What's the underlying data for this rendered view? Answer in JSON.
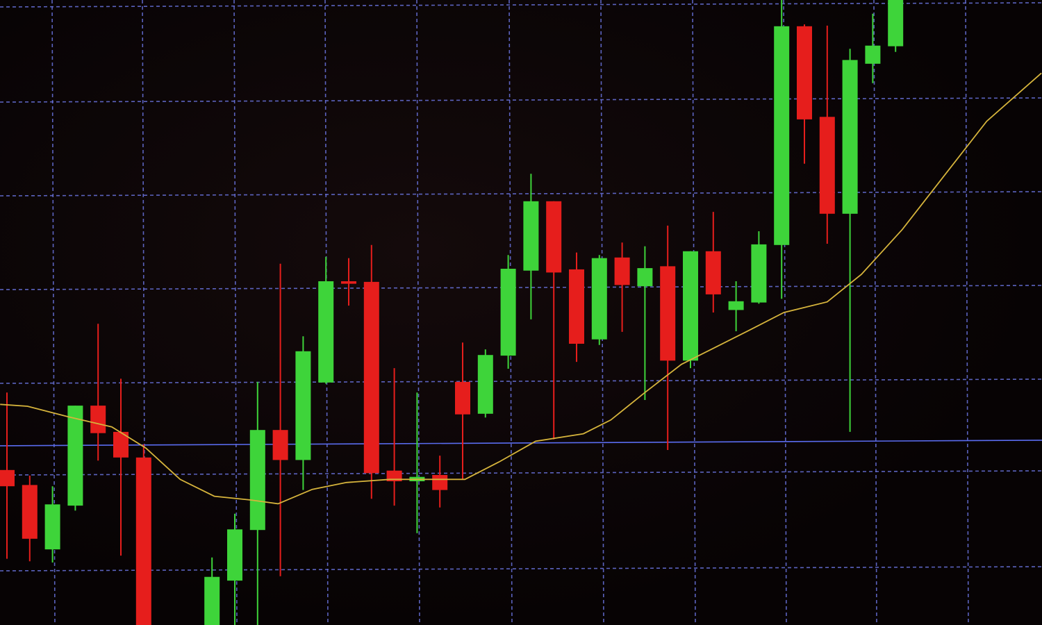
{
  "chart_data": {
    "type": "candlestick",
    "title": "",
    "xlabel": "",
    "ylabel": "",
    "grid": true,
    "xlim": [
      -0.3,
      45.4
    ],
    "ylim": [
      0,
      100
    ],
    "colors": {
      "up": "#3ed43a",
      "down": "#e61e1c",
      "moving_average": "#d6b43c",
      "reference_line": "#5a6cf0",
      "grid": "#6a74e0",
      "background": "#070304"
    },
    "candles": [
      {
        "x": 0,
        "o": 24.8,
        "h": 37.2,
        "l": 10.6,
        "c": 22.2
      },
      {
        "x": 1,
        "o": 22.4,
        "h": 23.9,
        "l": 10.2,
        "c": 13.8
      },
      {
        "x": 2,
        "o": 12.1,
        "h": 22.2,
        "l": 10.0,
        "c": 19.3
      },
      {
        "x": 3,
        "o": 19.1,
        "h": 35.1,
        "l": 18.3,
        "c": 35.1
      },
      {
        "x": 4,
        "o": 35.1,
        "h": 48.2,
        "l": 26.3,
        "c": 30.7
      },
      {
        "x": 5,
        "o": 30.9,
        "h": 39.4,
        "l": 11.1,
        "c": 26.8
      },
      {
        "x": 6,
        "o": 26.8,
        "h": 28.9,
        "l": 0,
        "c": 0
      },
      {
        "x": 9,
        "o": 0,
        "h": 10.8,
        "l": 0,
        "c": 7.7
      },
      {
        "x": 10,
        "o": 7.1,
        "h": 17.8,
        "l": 0,
        "c": 15.3
      },
      {
        "x": 11,
        "o": 15.2,
        "h": 38.9,
        "l": 0,
        "c": 31.2
      },
      {
        "x": 12,
        "o": 31.2,
        "h": 57.8,
        "l": 7.8,
        "c": 26.4
      },
      {
        "x": 13,
        "o": 26.4,
        "h": 46.2,
        "l": 21.6,
        "c": 43.8
      },
      {
        "x": 14,
        "o": 38.8,
        "h": 58.9,
        "l": 38.6,
        "c": 55.0
      },
      {
        "x": 15,
        "o": 55.0,
        "h": 58.7,
        "l": 51.1,
        "c": 54.6
      },
      {
        "x": 16,
        "o": 54.9,
        "h": 60.8,
        "l": 20.2,
        "c": 24.3
      },
      {
        "x": 17,
        "o": 24.7,
        "h": 41.1,
        "l": 19.1,
        "c": 23.0
      },
      {
        "x": 18,
        "o": 23.0,
        "h": 37.2,
        "l": 14.7,
        "c": 23.7
      },
      {
        "x": 19,
        "o": 24.0,
        "h": 27.1,
        "l": 18.8,
        "c": 21.6
      },
      {
        "x": 20,
        "o": 38.9,
        "h": 45.2,
        "l": 23.3,
        "c": 33.7
      },
      {
        "x": 21,
        "o": 33.8,
        "h": 44.1,
        "l": 33.2,
        "c": 43.2
      },
      {
        "x": 22,
        "o": 43.1,
        "h": 59.2,
        "l": 41.0,
        "c": 57.0
      },
      {
        "x": 23,
        "o": 56.7,
        "h": 72.2,
        "l": 48.9,
        "c": 67.8
      },
      {
        "x": 24,
        "o": 67.8,
        "h": 67.8,
        "l": 29.7,
        "c": 56.4
      },
      {
        "x": 25,
        "o": 56.9,
        "h": 59.6,
        "l": 42.1,
        "c": 45.0
      },
      {
        "x": 26,
        "o": 45.7,
        "h": 59.2,
        "l": 44.8,
        "c": 58.7
      },
      {
        "x": 27,
        "o": 58.8,
        "h": 61.2,
        "l": 46.9,
        "c": 54.4
      },
      {
        "x": 28,
        "o": 54.2,
        "h": 60.6,
        "l": 36.0,
        "c": 57.1
      },
      {
        "x": 29,
        "o": 57.4,
        "h": 63.9,
        "l": 28.0,
        "c": 42.3
      },
      {
        "x": 30,
        "o": 42.3,
        "h": 59.8,
        "l": 41.1,
        "c": 59.8
      },
      {
        "x": 31,
        "o": 59.8,
        "h": 66.1,
        "l": 50.0,
        "c": 52.9
      },
      {
        "x": 32,
        "o": 50.4,
        "h": 55.0,
        "l": 47.0,
        "c": 51.8
      },
      {
        "x": 33,
        "o": 51.6,
        "h": 63.0,
        "l": 51.4,
        "c": 60.9
      },
      {
        "x": 34,
        "o": 60.8,
        "h": 100,
        "l": 52.2,
        "c": 95.8
      },
      {
        "x": 35,
        "o": 95.8,
        "h": 96.1,
        "l": 73.8,
        "c": 80.9
      },
      {
        "x": 36,
        "o": 81.3,
        "h": 95.9,
        "l": 61.0,
        "c": 65.8
      },
      {
        "x": 37,
        "o": 65.8,
        "h": 92.2,
        "l": 30.9,
        "c": 90.4
      },
      {
        "x": 38,
        "o": 89.8,
        "h": 97.8,
        "l": 86.7,
        "c": 92.7
      },
      {
        "x": 39,
        "o": 92.6,
        "h": 100,
        "l": 91.7,
        "c": 100
      }
    ],
    "moving_average": [
      [
        -0.3,
        35.3
      ],
      [
        0.9,
        35.0
      ],
      [
        2.7,
        33.3
      ],
      [
        4.6,
        31.7
      ],
      [
        6.1,
        28.3
      ],
      [
        7.6,
        23.3
      ],
      [
        9.1,
        20.6
      ],
      [
        10.7,
        20.0
      ],
      [
        11.9,
        19.4
      ],
      [
        13.4,
        21.7
      ],
      [
        14.9,
        22.8
      ],
      [
        16.8,
        23.3
      ],
      [
        20.1,
        23.3
      ],
      [
        21.6,
        26.1
      ],
      [
        23.2,
        29.4
      ],
      [
        25.3,
        30.6
      ],
      [
        26.5,
        32.8
      ],
      [
        28.0,
        37.2
      ],
      [
        29.6,
        41.7
      ],
      [
        30.8,
        43.9
      ],
      [
        32.6,
        47.2
      ],
      [
        34.1,
        50.0
      ],
      [
        36.0,
        51.7
      ],
      [
        37.5,
        56.1
      ],
      [
        39.3,
        63.3
      ],
      [
        41.2,
        72.2
      ],
      [
        43.0,
        80.6
      ],
      [
        45.4,
        88.3
      ]
    ],
    "reference_line": 28.9
  }
}
